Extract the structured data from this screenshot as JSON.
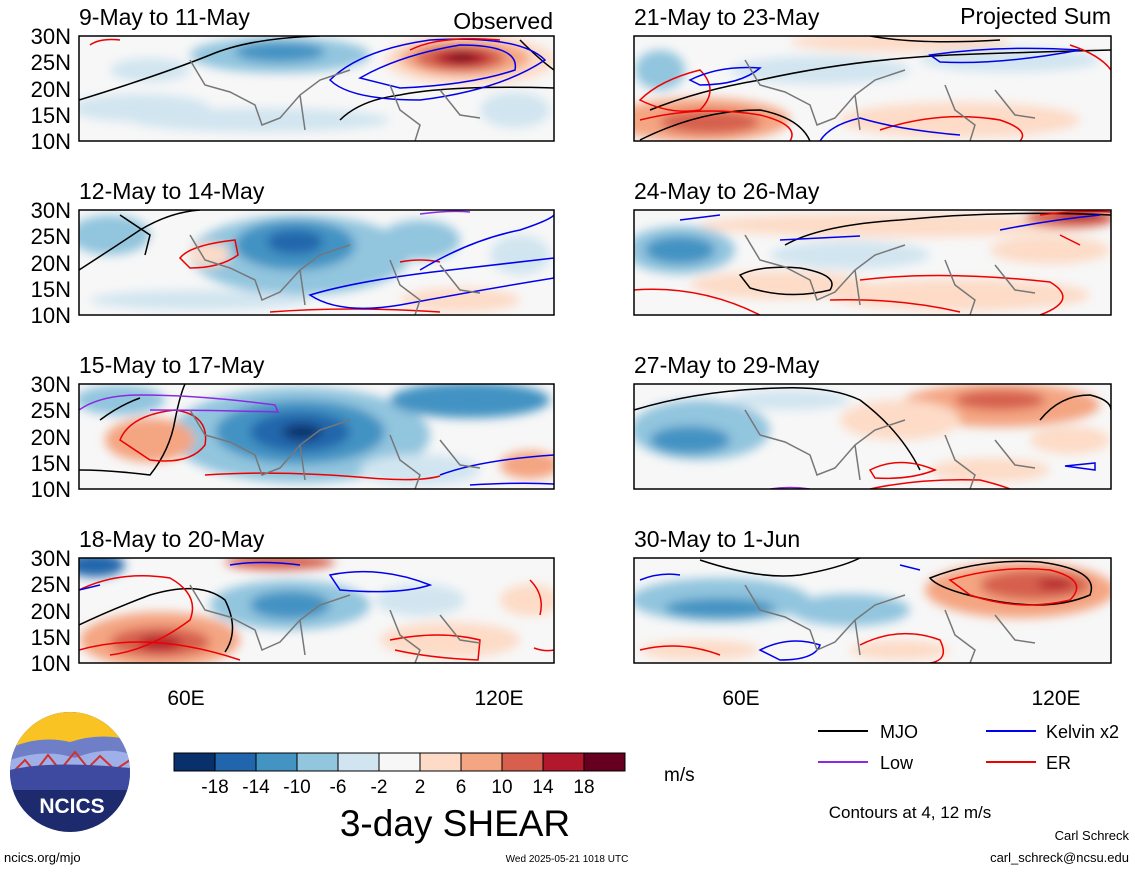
{
  "header": {
    "observed_label": "Observed",
    "projected_label": "Projected Sum"
  },
  "panels": [
    {
      "id": "p1",
      "column": "observed",
      "title": "9-May to 11-May"
    },
    {
      "id": "p2",
      "column": "observed",
      "title": "12-May to 14-May"
    },
    {
      "id": "p3",
      "column": "observed",
      "title": "15-May to 17-May"
    },
    {
      "id": "p4",
      "column": "observed",
      "title": "18-May to 20-May"
    },
    {
      "id": "p5",
      "column": "projected",
      "title": "21-May to 23-May"
    },
    {
      "id": "p6",
      "column": "projected",
      "title": "24-May to 26-May"
    },
    {
      "id": "p7",
      "column": "projected",
      "title": "27-May to 29-May"
    },
    {
      "id": "p8",
      "column": "projected",
      "title": "30-May to 1-Jun"
    }
  ],
  "axes": {
    "lat_labels": [
      "30N",
      "25N",
      "20N",
      "15N",
      "10N"
    ],
    "lon_labels": [
      "60E",
      "120E"
    ]
  },
  "colorbar": {
    "title": "3-day SHEAR",
    "units": "m/s",
    "tick_labels": [
      "-18",
      "-14",
      "-10",
      "-6",
      "-2",
      "2",
      "6",
      "10",
      "14",
      "18"
    ],
    "colors": [
      "#08306b",
      "#2166ac",
      "#4393c3",
      "#92c5de",
      "#d1e5f0",
      "#f7f7f7",
      "#fddbc7",
      "#f4a582",
      "#d6604d",
      "#b2182b",
      "#67001f"
    ]
  },
  "legend": {
    "items": [
      {
        "label": "MJO",
        "color": "#000000"
      },
      {
        "label": "Kelvin x2",
        "color": "#0000ee"
      },
      {
        "label": "Low",
        "color": "#8a2be2"
      },
      {
        "label": "ER",
        "color": "#ee0000"
      }
    ],
    "contours_note": "Contours at 4, 12 m/s"
  },
  "footer": {
    "logo_text": "NCICS",
    "site": "ncics.org/mjo",
    "timestamp": "Wed 2025-05-21 1018 UTC",
    "author": "Carl Schreck",
    "email": "carl_schreck@ncsu.edu"
  }
}
